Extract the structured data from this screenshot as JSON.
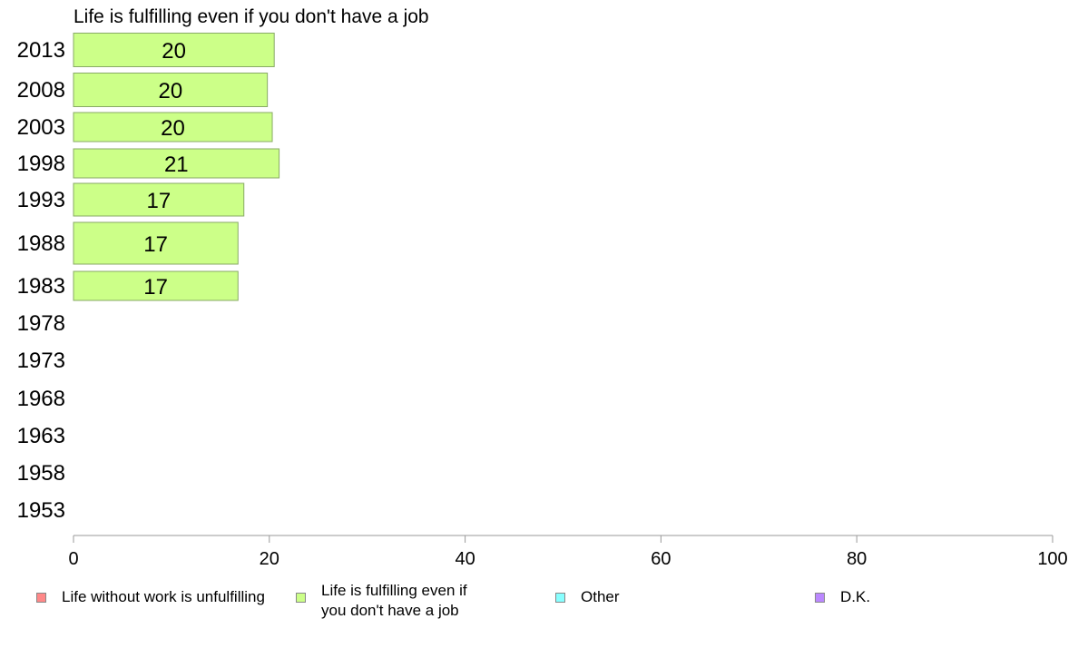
{
  "chart_data": {
    "type": "bar",
    "orientation": "horizontal",
    "title": "Life is fulfilling even if you don't have a job",
    "categories": [
      "2013",
      "2008",
      "2003",
      "1998",
      "1993",
      "1988",
      "1983",
      "1978",
      "1973",
      "1968",
      "1963",
      "1958",
      "1953"
    ],
    "series": [
      {
        "name": "Life is fulfilling even if you don't have a job",
        "color": "#ccff88",
        "values": [
          20.5,
          19.8,
          20.3,
          21.0,
          17.4,
          16.8,
          16.8,
          null,
          null,
          null,
          null,
          null,
          null
        ],
        "labels": [
          "20",
          "20",
          "20",
          "21",
          "17",
          "17",
          "17",
          "",
          "",
          "",
          "",
          "",
          ""
        ]
      }
    ],
    "xlim": [
      0,
      100
    ],
    "xticks": [
      0,
      20,
      40,
      60,
      80,
      100
    ],
    "xlabel": "",
    "ylabel": "",
    "grid": false,
    "legend_position": "bottom"
  },
  "legend": [
    {
      "label": "Life without work is unfulfilling",
      "color": "#ff8888"
    },
    {
      "label": "Life is fulfilling even if\nyou don't have a job",
      "color": "#ccff88"
    },
    {
      "label": "Other",
      "color": "#88ffff"
    },
    {
      "label": "D.K.",
      "color": "#bb88ff"
    }
  ]
}
